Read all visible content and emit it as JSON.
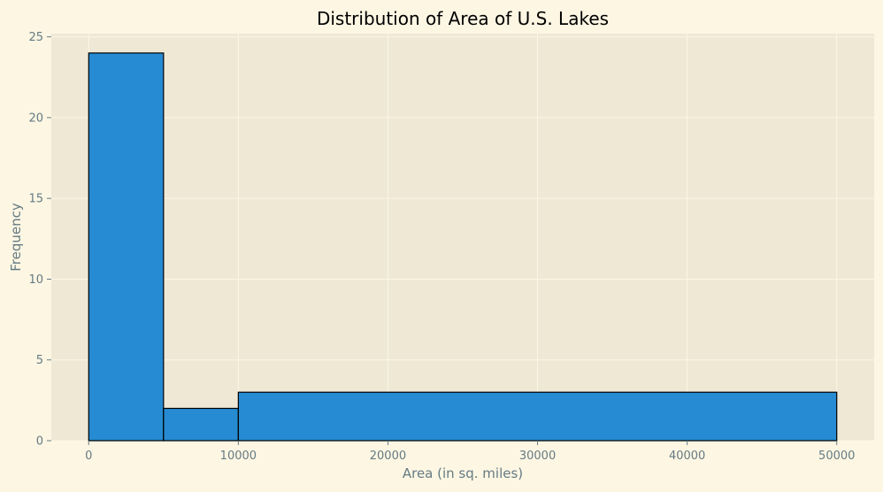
{
  "chart_data": {
    "type": "bar",
    "title": "Distribution of Area of U.S. Lakes",
    "xlabel": "Area (in sq. miles)",
    "ylabel": "Frequency",
    "bins": [
      {
        "x0": 0,
        "x1": 5000,
        "count": 24
      },
      {
        "x0": 5000,
        "x1": 10000,
        "count": 2
      },
      {
        "x0": 10000,
        "x1": 50000,
        "count": 3
      }
    ],
    "xlim": [
      -2500,
      52500
    ],
    "ylim": [
      0,
      25.2
    ],
    "x_ticks": [
      0,
      10000,
      20000,
      30000,
      40000,
      50000
    ],
    "y_ticks": [
      0,
      5,
      10,
      15,
      20,
      25
    ],
    "grid": true,
    "legend": "none",
    "colors": {
      "figure_background": "#fdf6e3",
      "plot_background": "#eee8d5",
      "bar_fill": "#268bd2",
      "bar_edge": "#000000",
      "grid": "#fdf6e3",
      "tick_label": "#657b83",
      "axis_label": "#657b83",
      "title": "#000000"
    }
  }
}
